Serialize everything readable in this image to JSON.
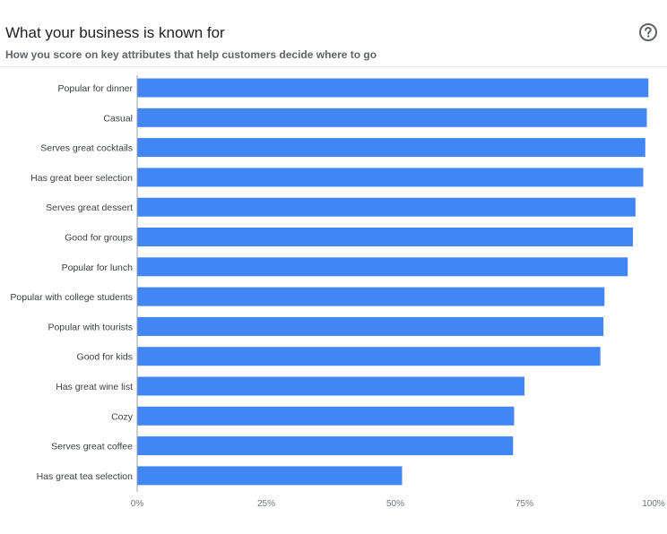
{
  "header": {
    "title": "What your business is known for",
    "subtitle": "How you score on key attributes that help customers decide where to go",
    "help_icon": "help-circle-icon"
  },
  "colors": {
    "bar": "#4285f4",
    "axis": "#9aa0a6",
    "text": "#3c4043"
  },
  "chart_data": {
    "type": "bar",
    "orientation": "horizontal",
    "title": "What your business is known for",
    "subtitle": "How you score on key attributes that help customers decide where to go",
    "xlabel": "",
    "ylabel": "",
    "xlim": [
      0,
      100
    ],
    "x_ticks": [
      "0%",
      "25%",
      "50%",
      "75%",
      "100%"
    ],
    "grid": false,
    "legend": "none",
    "categories": [
      "Popular for dinner",
      "Casual",
      "Serves great cocktails",
      "Has great beer selection",
      "Serves great dessert",
      "Good for groups",
      "Popular for lunch",
      "Popular with college students",
      "Popular with tourists",
      "Good for kids",
      "Has great wine list",
      "Cozy",
      "Serves great coffee",
      "Has great tea selection"
    ],
    "values": [
      99,
      98.7,
      98.4,
      98,
      96.5,
      96,
      95,
      90.5,
      90.3,
      89.7,
      75,
      73,
      72.8,
      51.3
    ]
  }
}
